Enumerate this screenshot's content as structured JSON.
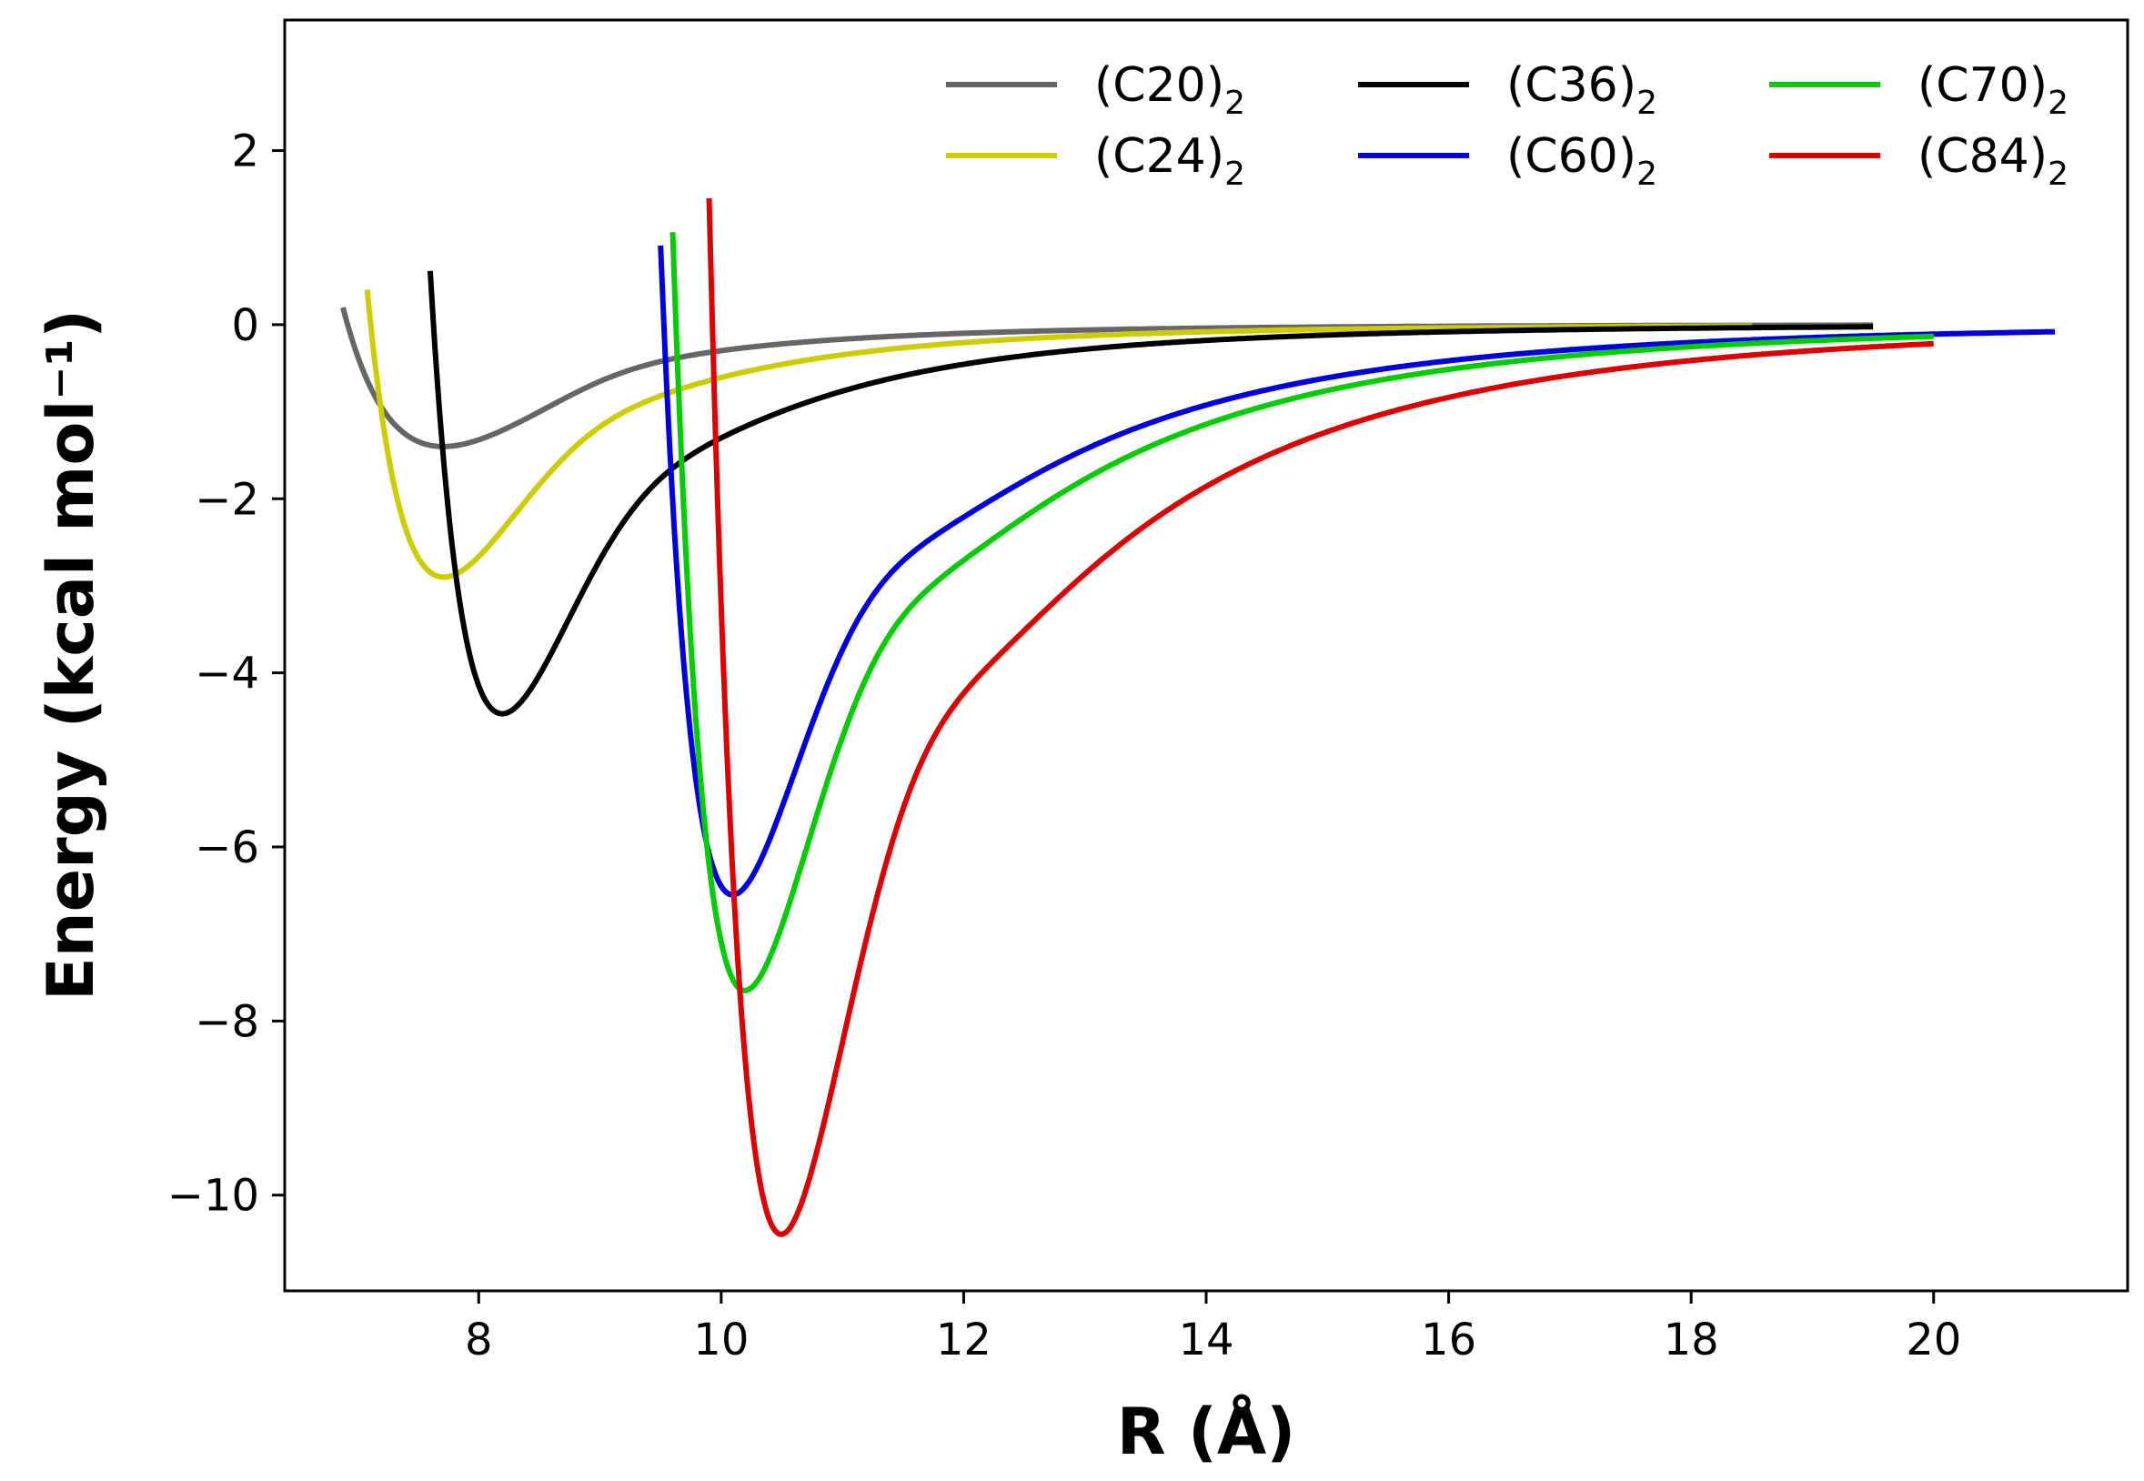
{
  "chart_data": {
    "type": "line",
    "title": "",
    "xlabel": "R (Å)",
    "ylabel": "Energy (kcal mol⁻¹)",
    "xlim": [
      6.4,
      21.6
    ],
    "ylim": [
      -11.1,
      3.5
    ],
    "xticks": [
      8,
      10,
      12,
      14,
      16,
      18,
      20
    ],
    "xtick_labels": [
      "8",
      "10",
      "12",
      "14",
      "16",
      "18",
      "20"
    ],
    "yticks": [
      2,
      0,
      -2,
      -4,
      -6,
      -8,
      -10
    ],
    "ytick_labels": [
      "2",
      "0",
      "−2",
      "−4",
      "−6",
      "−8",
      "−10"
    ],
    "grid": false,
    "legend_position": "top-right",
    "series": [
      {
        "name": "(C20)₂",
        "label_main": "(C20)",
        "label_sub": "2",
        "color": "#666666",
        "r_start": 6.88,
        "r_end": 19.5,
        "r_min": 7.72,
        "e_min": -1.4
      },
      {
        "name": "(C24)₂",
        "label_main": "(C24)",
        "label_sub": "2",
        "color": "#cccc00",
        "r_start": 7.08,
        "r_end": 18.5,
        "r_min": 7.72,
        "e_min": -2.9
      },
      {
        "name": "(C36)₂",
        "label_main": "(C36)",
        "label_sub": "2",
        "color": "#000000",
        "r_start": 7.6,
        "r_end": 19.5,
        "r_min": 8.2,
        "e_min": -4.47
      },
      {
        "name": "(C60)₂",
        "label_main": "(C60)",
        "label_sub": "2",
        "color": "#0000dd",
        "r_start": 9.5,
        "r_end": 21.0,
        "r_min": 10.1,
        "e_min": -6.55
      },
      {
        "name": "(C70)₂",
        "label_main": "(C70)",
        "label_sub": "2",
        "color": "#00cc00",
        "r_start": 9.6,
        "r_end": 20.0,
        "r_min": 10.2,
        "e_min": -7.65
      },
      {
        "name": "(C84)₂",
        "label_main": "(C84)",
        "label_sub": "2",
        "color": "#dd0000",
        "r_start": 9.9,
        "r_end": 20.0,
        "r_min": 10.5,
        "e_min": -10.45
      }
    ]
  }
}
